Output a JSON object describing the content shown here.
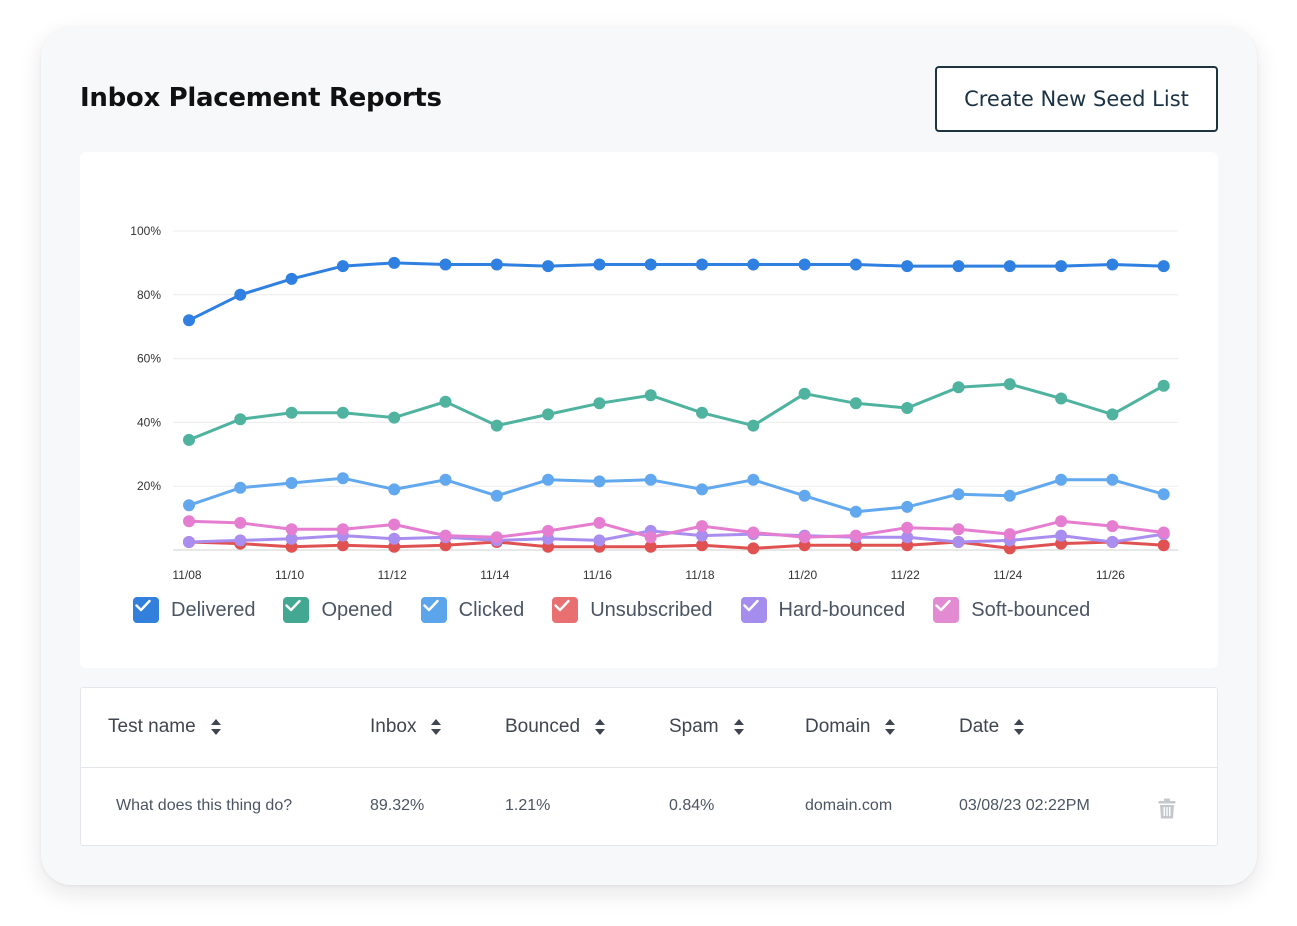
{
  "header": {
    "title": "Inbox Placement Reports",
    "create_button_label": "Create New Seed List"
  },
  "chart_data": {
    "type": "line",
    "x": [
      "11/08",
      "11/09",
      "11/10",
      "11/11",
      "11/12",
      "11/13",
      "11/14",
      "11/15",
      "11/16",
      "11/17",
      "11/18",
      "11/19",
      "11/20",
      "11/21",
      "11/22",
      "11/23",
      "11/24",
      "11/25",
      "11/26",
      "11/27"
    ],
    "x_tick_labels": [
      "11/08",
      "11/10",
      "11/12",
      "11/14",
      "11/16",
      "11/18",
      "11/20",
      "11/22",
      "11/24",
      "11/26"
    ],
    "y_tick_labels": [
      "100%",
      "80%",
      "60%",
      "40%",
      "20%"
    ],
    "ylim": [
      0,
      100
    ],
    "grid": true,
    "legend_position": "bottom",
    "series": [
      {
        "name": "Delivered",
        "color": "#2f80e1",
        "values": [
          72,
          80,
          85,
          89,
          90,
          89.5,
          89.5,
          89,
          89.5,
          89.5,
          89.5,
          89.5,
          89.5,
          89.5,
          89,
          89,
          89,
          89,
          89.5,
          89
        ]
      },
      {
        "name": "Opened",
        "color": "#4fb39f",
        "values": [
          34.5,
          41,
          43,
          43,
          41.5,
          46.5,
          39,
          42.5,
          46,
          48.5,
          43,
          39,
          49,
          46,
          44.5,
          51,
          52,
          47.5,
          42.5,
          51.5
        ]
      },
      {
        "name": "Clicked",
        "color": "#62a8ef",
        "values": [
          14,
          19.5,
          21,
          22.5,
          19,
          22,
          17,
          22,
          21.5,
          22,
          19,
          22,
          17,
          12,
          13.5,
          17.5,
          17,
          22,
          22,
          17.5
        ]
      },
      {
        "name": "Unsubscribed",
        "color": "#e05252",
        "values": [
          2.5,
          2,
          1,
          1.5,
          1,
          1.5,
          2.5,
          1,
          1,
          1,
          1.5,
          0.5,
          1.5,
          1.5,
          1.5,
          2.5,
          0.5,
          2,
          2.5,
          1.5
        ]
      },
      {
        "name": "Hard-bounced",
        "color": "#a98ef0",
        "values": [
          2.5,
          3,
          3.5,
          4.5,
          3.5,
          4,
          3,
          3.5,
          3,
          6,
          4.5,
          5,
          4.5,
          4,
          4,
          2.5,
          3,
          4.5,
          2.5,
          5
        ]
      },
      {
        "name": "Soft-bounced",
        "color": "#e57ed0",
        "values": [
          9,
          8.5,
          6.5,
          6.5,
          8,
          4.5,
          4,
          6,
          8.5,
          4,
          7.5,
          5.5,
          4,
          4.5,
          7,
          6.5,
          5,
          9,
          7.5,
          5.5
        ]
      }
    ]
  },
  "legend": {
    "items": [
      {
        "label": "Delivered",
        "color": "#2f80e1",
        "checked": true
      },
      {
        "label": "Opened",
        "color": "#3fa992",
        "checked": true
      },
      {
        "label": "Clicked",
        "color": "#5aa6ef",
        "checked": true
      },
      {
        "label": "Unsubscribed",
        "color": "#ee6f6f",
        "checked": true
      },
      {
        "label": "Hard-bounced",
        "color": "#a68cf2",
        "checked": true
      },
      {
        "label": "Soft-bounced",
        "color": "#e58ad6",
        "checked": true
      }
    ]
  },
  "table": {
    "columns": [
      "Test name",
      "Inbox",
      "Bounced",
      "Spam",
      "Domain",
      "Date"
    ],
    "rows": [
      {
        "test_name": "What does this thing do?",
        "inbox": "89.32%",
        "bounced": "1.21%",
        "spam": "0.84%",
        "domain": "domain.com",
        "date": "03/08/23 02:22PM"
      }
    ]
  }
}
